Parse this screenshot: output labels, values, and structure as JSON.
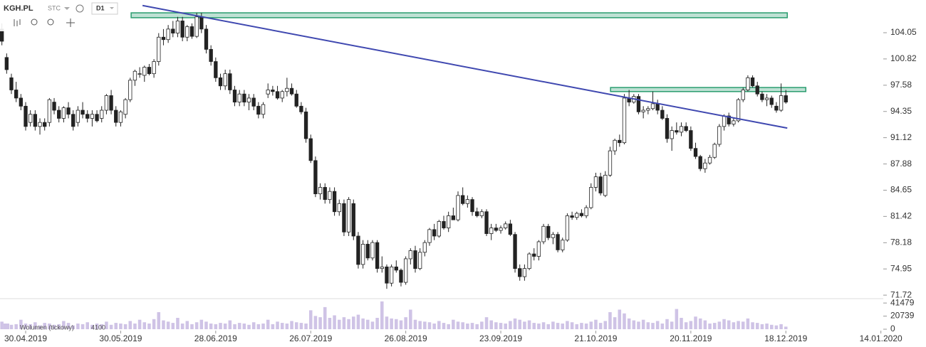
{
  "chart_data": {
    "type": "candlestick",
    "symbol": "KGH.PL",
    "market": "STC",
    "interval": "D1",
    "volume_label": "Wolumen (tickowy)",
    "xlim": [
      -0.4,
      185.5
    ],
    "xticks": [
      {
        "value": 5,
        "label": "30.04.2019"
      },
      {
        "value": 25,
        "label": "30.05.2019"
      },
      {
        "value": 45,
        "label": "28.06.2019"
      },
      {
        "value": 65,
        "label": "26.07.2019"
      },
      {
        "value": 85,
        "label": "26.08.2019"
      },
      {
        "value": 105,
        "label": "23.09.2019"
      },
      {
        "value": 125,
        "label": "21.10.2019"
      },
      {
        "value": 145,
        "label": "20.11.2019"
      },
      {
        "value": 165,
        "label": "18.12.2019"
      },
      {
        "value": 185,
        "label": "14.01.2020"
      }
    ],
    "ylim": [
      71.29,
      108.08
    ],
    "yticks": [
      104.05,
      100.82,
      97.58,
      94.35,
      91.12,
      87.88,
      84.65,
      81.42,
      78.18,
      74.95,
      71.72
    ],
    "y2lim": [
      0,
      48390
    ],
    "y2ticks": [
      41479,
      20739,
      0
    ],
    "up_color": "#ffffff",
    "down_color": "#222222",
    "volume_color": "#cfc3e6",
    "candles": [
      [
        104.5,
        105.2,
        102.5,
        103
      ],
      [
        101,
        101.5,
        99,
        99.5
      ],
      [
        98.5,
        99,
        96.5,
        97
      ],
      [
        97,
        98,
        95.5,
        96
      ],
      [
        96,
        96.5,
        94.5,
        95
      ],
      [
        95,
        95.5,
        92,
        92.5
      ],
      [
        93,
        94.5,
        92.5,
        94
      ],
      [
        94,
        94.5,
        92,
        92.5
      ],
      [
        92.5,
        93.5,
        91.5,
        93
      ],
      [
        93,
        93.5,
        92,
        92.5
      ],
      [
        93,
        96,
        92.5,
        95.8
      ],
      [
        95.5,
        96,
        94,
        94.5
      ],
      [
        94.5,
        95,
        93,
        93.5
      ],
      [
        93.5,
        95,
        93,
        94.8
      ],
      [
        94.8,
        95.5,
        93.5,
        94
      ],
      [
        94,
        94.5,
        92,
        92.5
      ],
      [
        93,
        95,
        92.5,
        94.5
      ],
      [
        94.5,
        95.5,
        93.5,
        94
      ],
      [
        94,
        94.5,
        93,
        93.5
      ],
      [
        93.5,
        94.5,
        92.5,
        94
      ],
      [
        94,
        94.5,
        93,
        93.2
      ],
      [
        93.5,
        95,
        93,
        94.5
      ],
      [
        94.5,
        96.5,
        94,
        96.3
      ],
      [
        96.3,
        97,
        94,
        94.5
      ],
      [
        94.5,
        95,
        92.5,
        93
      ],
      [
        93,
        94.5,
        92.5,
        94.3
      ],
      [
        94,
        96,
        93.5,
        95.8
      ],
      [
        95.8,
        98.5,
        95.5,
        98.2
      ],
      [
        98.2,
        99.5,
        97.5,
        99.3
      ],
      [
        99,
        99.8,
        98.5,
        99
      ],
      [
        98.8,
        100,
        98,
        99.8
      ],
      [
        99.8,
        100.2,
        98.8,
        99
      ],
      [
        99,
        100.8,
        98.5,
        100.5
      ],
      [
        100.5,
        104,
        100,
        103.5
      ],
      [
        103.5,
        104.5,
        102.5,
        103.2
      ],
      [
        103.2,
        105,
        102.8,
        104.5
      ],
      [
        104.5,
        105.5,
        103.5,
        104
      ],
      [
        104,
        106,
        103.5,
        105.5
      ],
      [
        105.5,
        106,
        103,
        103.5
      ],
      [
        103.5,
        105,
        103,
        104.8
      ],
      [
        104.8,
        105.2,
        103.3,
        103.6
      ],
      [
        103.6,
        106.5,
        103.4,
        106
      ],
      [
        106,
        106.5,
        104,
        104.5
      ],
      [
        104.5,
        105,
        101.5,
        102
      ],
      [
        102,
        102.5,
        100,
        100.5
      ],
      [
        100.5,
        101,
        98,
        98.5
      ],
      [
        98.5,
        99,
        97,
        97.5
      ],
      [
        97.5,
        99.5,
        97,
        99
      ],
      [
        99,
        99.5,
        96.5,
        97
      ],
      [
        97,
        97.5,
        95,
        95.5
      ],
      [
        95.5,
        97,
        95,
        96.5
      ],
      [
        96.5,
        97,
        95,
        95.5
      ],
      [
        95.5,
        96.5,
        94.5,
        96
      ],
      [
        96,
        96.5,
        94.5,
        95
      ],
      [
        95,
        95.5,
        93.5,
        94
      ],
      [
        94,
        95.5,
        93.5,
        95.2
      ],
      [
        96.5,
        97.8,
        96,
        97
      ],
      [
        97,
        97.5,
        96.3,
        96.8
      ],
      [
        96.8,
        97.5,
        95.8,
        96
      ],
      [
        96,
        97,
        95.5,
        96.8
      ],
      [
        96.8,
        98.5,
        96.2,
        97.2
      ],
      [
        97.2,
        97.8,
        96.3,
        96.5
      ],
      [
        96.5,
        97,
        94.8,
        95
      ],
      [
        95,
        95.5,
        94,
        94.3
      ],
      [
        94.3,
        94.8,
        90.5,
        91
      ],
      [
        91,
        91.5,
        88,
        88.3
      ],
      [
        88.3,
        88.8,
        83.8,
        84.2
      ],
      [
        84.2,
        85.5,
        83.5,
        85
      ],
      [
        85,
        85.5,
        83,
        83.5
      ],
      [
        83.5,
        85,
        83,
        84.5
      ],
      [
        84.5,
        85,
        81.5,
        82
      ],
      [
        82,
        83.5,
        81.5,
        83
      ],
      [
        83,
        83.5,
        79,
        79.5
      ],
      [
        79.5,
        83.8,
        79,
        83.5
      ],
      [
        83,
        83.5,
        78.5,
        79
      ],
      [
        79,
        79.5,
        75,
        75.5
      ],
      [
        75.5,
        78.5,
        75,
        78
      ],
      [
        78,
        78.5,
        76,
        76.3
      ],
      [
        76.3,
        78.5,
        76,
        78.2
      ],
      [
        78.2,
        78.5,
        74.5,
        75
      ],
      [
        75,
        76.5,
        74.5,
        75.2
      ],
      [
        75.2,
        75.5,
        72.5,
        73.2
      ],
      [
        73.2,
        75.5,
        72.8,
        75.2
      ],
      [
        75.2,
        76,
        74.5,
        74.8
      ],
      [
        74.8,
        75,
        72.8,
        73.3
      ],
      [
        73.3,
        76.5,
        73,
        76.2
      ],
      [
        76.2,
        77.5,
        75.5,
        77.2
      ],
      [
        77.2,
        77.8,
        74.5,
        75
      ],
      [
        75,
        77.5,
        74.8,
        77
      ],
      [
        77,
        78.5,
        76.5,
        78.2
      ],
      [
        78.2,
        80,
        77.8,
        79.8
      ],
      [
        79.8,
        80.5,
        78.5,
        79
      ],
      [
        79,
        81,
        78.8,
        80.8
      ],
      [
        80.8,
        81.5,
        79.8,
        80
      ],
      [
        80,
        82,
        79.5,
        81.5
      ],
      [
        81.5,
        82.5,
        81,
        81
      ],
      [
        81,
        84.5,
        80.8,
        84
      ],
      [
        84,
        85,
        82.8,
        83
      ],
      [
        83,
        84,
        82.5,
        83.5
      ],
      [
        83.5,
        83.8,
        81.5,
        82
      ],
      [
        82,
        82.5,
        81.3,
        81.5
      ],
      [
        81.5,
        82.3,
        81.2,
        82
      ],
      [
        82,
        82.3,
        79,
        79.3
      ],
      [
        79.3,
        80.5,
        78.5,
        80
      ],
      [
        80,
        80.5,
        79.5,
        79.7
      ],
      [
        79.7,
        80.3,
        79.3,
        80
      ],
      [
        80,
        80.8,
        79.8,
        80.5
      ],
      [
        80.5,
        81,
        79,
        79.2
      ],
      [
        79.2,
        79.5,
        74.5,
        75
      ],
      [
        75,
        75.5,
        73.5,
        74
      ],
      [
        74,
        75.5,
        73.5,
        75
      ],
      [
        75,
        77,
        74.8,
        76.8
      ],
      [
        76.8,
        77.5,
        76,
        76.5
      ],
      [
        76.5,
        78.5,
        76,
        78.3
      ],
      [
        78.3,
        80.5,
        78,
        80.2
      ],
      [
        80.2,
        80.5,
        78.5,
        78.8
      ],
      [
        78.8,
        79.5,
        78,
        79.2
      ],
      [
        79.2,
        79.5,
        77,
        77.3
      ],
      [
        77.3,
        78.8,
        77,
        78.5
      ],
      [
        78.5,
        81.8,
        78.3,
        81.5
      ],
      [
        81.5,
        82,
        81,
        81.3
      ],
      [
        81.3,
        82,
        81,
        81.8
      ],
      [
        81.8,
        82.3,
        81.3,
        81.5
      ],
      [
        81.5,
        82.8,
        81.2,
        82.5
      ],
      [
        82.5,
        85.5,
        82.3,
        85
      ],
      [
        85,
        86.8,
        84.5,
        86.3
      ],
      [
        86.3,
        86.8,
        84,
        84.3
      ],
      [
        84,
        87,
        83.8,
        86.5
      ],
      [
        86.5,
        90,
        86.3,
        89.5
      ],
      [
        89.5,
        91,
        89,
        90.8
      ],
      [
        90.8,
        91.5,
        90,
        90.5
      ],
      [
        90.5,
        96.5,
        90.3,
        96
      ],
      [
        96,
        97,
        95,
        95.5
      ],
      [
        95.5,
        96.5,
        95.3,
        96.2
      ],
      [
        96.2,
        96.5,
        94,
        94.3
      ],
      [
        94.3,
        95,
        93.5,
        94.5
      ],
      [
        94.5,
        95,
        94,
        94.7
      ],
      [
        94.7,
        96.8,
        94.5,
        95.3
      ],
      [
        95.3,
        95.8,
        94,
        94.5
      ],
      [
        94.5,
        95,
        93.3,
        93.5
      ],
      [
        93.5,
        94,
        90.5,
        91
      ],
      [
        91,
        92.5,
        89.5,
        92
      ],
      [
        92,
        93,
        91.5,
        91.8
      ],
      [
        91.8,
        93,
        91.3,
        92.5
      ],
      [
        92.5,
        93,
        91.8,
        92
      ],
      [
        92,
        92.5,
        89.5,
        89.8
      ],
      [
        89.8,
        90.5,
        88.5,
        88.8
      ],
      [
        88.8,
        89,
        87,
        87.3
      ],
      [
        87.3,
        88.5,
        86.8,
        88
      ],
      [
        88,
        89,
        87.8,
        88.7
      ],
      [
        88.7,
        90.5,
        88.5,
        90.3
      ],
      [
        90.3,
        92.8,
        90,
        92.5
      ],
      [
        92.5,
        94,
        92,
        93.8
      ],
      [
        93.8,
        94.2,
        92.5,
        92.8
      ],
      [
        92.8,
        93.5,
        92.5,
        93.2
      ],
      [
        93.2,
        96,
        93,
        95.8
      ],
      [
        95.8,
        97.3,
        95.5,
        97
      ],
      [
        97,
        98.8,
        96.8,
        98.5
      ],
      [
        98.5,
        98.8,
        97.3,
        97.5
      ],
      [
        97.5,
        98,
        96.2,
        96.5
      ],
      [
        96.5,
        96.8,
        95.5,
        95.8
      ],
      [
        95.8,
        96.5,
        95,
        96
      ],
      [
        96,
        96.3,
        94.8,
        95.2
      ],
      [
        95,
        95.5,
        94.2,
        94.5
      ],
      [
        94.5,
        97.8,
        94.3,
        96.3
      ],
      [
        96.3,
        97,
        95.3,
        95.5
      ]
    ],
    "volumes": [
      12000,
      9000,
      7000,
      8000,
      15000,
      9000,
      8000,
      11000,
      6000,
      10000,
      9000,
      7000,
      8000,
      13000,
      10000,
      6000,
      9000,
      8000,
      11000,
      7000,
      9000,
      8000,
      12000,
      7000,
      10000,
      9000,
      8000,
      13000,
      9000,
      15000,
      11000,
      9000,
      16000,
      27000,
      14000,
      12000,
      10000,
      18000,
      9000,
      13000,
      8000,
      11000,
      15000,
      12000,
      9000,
      8000,
      10000,
      9000,
      14000,
      8000,
      10000,
      9000,
      7000,
      11000,
      8000,
      9000,
      15000,
      8000,
      12000,
      10000,
      9000,
      13000,
      11000,
      10000,
      9000,
      30000,
      21000,
      19000,
      35000,
      18000,
      22000,
      15000,
      19000,
      16000,
      20000,
      23000,
      17000,
      15000,
      12000,
      18000,
      44000,
      20000,
      17000,
      16000,
      14000,
      19000,
      31000,
      15000,
      13000,
      12000,
      11000,
      9000,
      13000,
      10000,
      8000,
      15000,
      12000,
      11000,
      9000,
      10000,
      8000,
      12000,
      19000,
      14000,
      11000,
      10000,
      9000,
      13000,
      17000,
      15000,
      12000,
      14000,
      10000,
      9000,
      11000,
      8000,
      12000,
      10000,
      9000,
      13000,
      11000,
      8000,
      10000,
      9000,
      12000,
      15000,
      10000,
      13000,
      27000,
      19000,
      31000,
      25000,
      17000,
      14000,
      12000,
      15000,
      11000,
      10000,
      13000,
      9000,
      16000,
      12000,
      32000,
      18000,
      11000,
      13000,
      20000,
      17000,
      14000,
      9000,
      10000,
      12000,
      16000,
      14000,
      11000,
      13000,
      12000,
      17000,
      11000,
      10000,
      8000,
      9000,
      7000,
      6000,
      8000,
      4100
    ],
    "trendline": {
      "color": "#3f48b0",
      "x": [
        29.6,
        165.3
      ],
      "y": [
        107.4,
        92.3
      ]
    },
    "zones": [
      {
        "color": "#2a9d6f",
        "x": [
          27.2,
          165.3
        ],
        "y": [
          105.9,
          106.5
        ]
      },
      {
        "color": "#2a9d6f",
        "x": [
          128.1,
          169.2
        ],
        "y": [
          96.8,
          97.3
        ]
      }
    ]
  }
}
